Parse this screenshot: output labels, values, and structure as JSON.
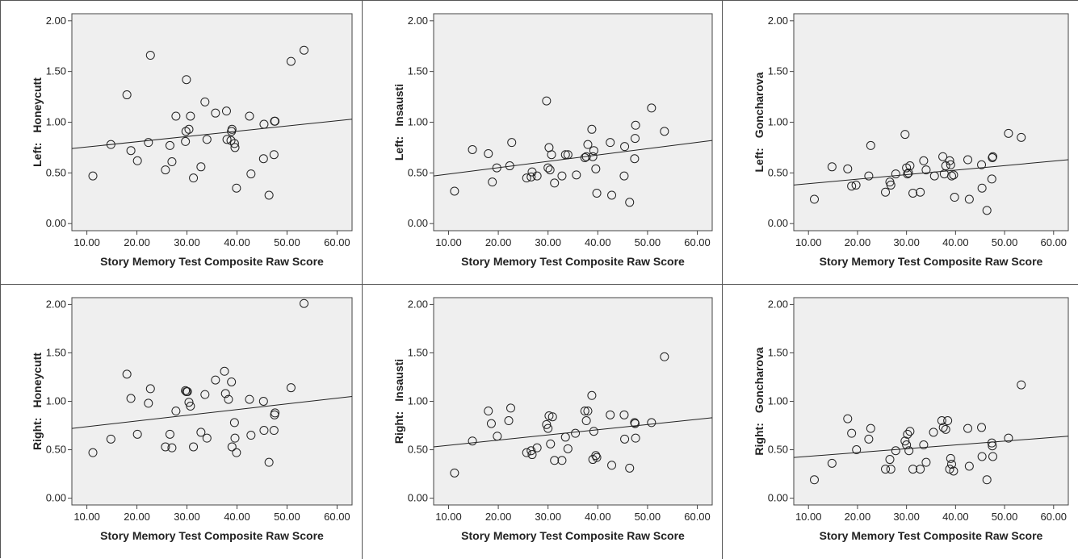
{
  "chart_data": [
    {
      "type": "scatter",
      "panel": "top-left",
      "ylabel_side": "Left:",
      "ylabel_name": "Honeycutt",
      "xlabel": "Story Memory Test Composite Raw Score",
      "xlim": [
        7,
        63
      ],
      "ylim": [
        -0.07,
        2.07
      ],
      "xticks": [
        "10.00",
        "20.00",
        "30.00",
        "40.00",
        "50.00",
        "60.00"
      ],
      "yticks": [
        "0.00",
        "0.50",
        "1.00",
        "1.50",
        "2.00"
      ],
      "fit_line": {
        "x1": 7,
        "y1": 0.74,
        "x2": 63,
        "y2": 1.03
      },
      "points": [
        [
          11.2,
          0.47
        ],
        [
          14.8,
          0.78
        ],
        [
          18.0,
          1.27
        ],
        [
          18.8,
          0.72
        ],
        [
          20.1,
          0.62
        ],
        [
          22.3,
          0.8
        ],
        [
          22.7,
          1.66
        ],
        [
          25.7,
          0.53
        ],
        [
          26.6,
          0.77
        ],
        [
          27.0,
          0.61
        ],
        [
          27.8,
          1.06
        ],
        [
          29.7,
          0.81
        ],
        [
          29.8,
          0.91
        ],
        [
          30.4,
          0.93
        ],
        [
          30.7,
          1.06
        ],
        [
          31.3,
          0.45
        ],
        [
          32.8,
          0.56
        ],
        [
          33.6,
          1.2
        ],
        [
          34.0,
          0.83
        ],
        [
          35.7,
          1.09
        ],
        [
          37.9,
          1.11
        ],
        [
          38.0,
          0.83
        ],
        [
          38.8,
          0.82
        ],
        [
          38.9,
          0.91
        ],
        [
          39.0,
          0.93
        ],
        [
          39.5,
          0.79
        ],
        [
          39.6,
          0.75
        ],
        [
          39.9,
          0.35
        ],
        [
          42.5,
          1.06
        ],
        [
          42.8,
          0.49
        ],
        [
          45.3,
          0.64
        ],
        [
          45.4,
          0.98
        ],
        [
          46.4,
          0.28
        ],
        [
          47.4,
          0.68
        ],
        [
          47.5,
          1.01
        ],
        [
          47.6,
          1.01
        ],
        [
          50.8,
          1.6
        ],
        [
          53.4,
          1.71
        ],
        [
          29.9,
          1.42
        ]
      ]
    },
    {
      "type": "scatter",
      "panel": "top-middle",
      "ylabel_side": "Left:",
      "ylabel_name": "Insausti",
      "xlabel": "Story Memory Test Composite Raw Score",
      "xlim": [
        7,
        63
      ],
      "ylim": [
        -0.07,
        2.07
      ],
      "xticks": [
        "10.00",
        "20.00",
        "30.00",
        "40.00",
        "50.00",
        "60.00"
      ],
      "yticks": [
        "0.00",
        "0.50",
        "1.00",
        "1.50",
        "2.00"
      ],
      "fit_line": {
        "x1": 7,
        "y1": 0.47,
        "x2": 63,
        "y2": 0.82
      },
      "points": [
        [
          11.2,
          0.32
        ],
        [
          14.8,
          0.73
        ],
        [
          18.0,
          0.69
        ],
        [
          18.8,
          0.41
        ],
        [
          19.7,
          0.55
        ],
        [
          22.3,
          0.57
        ],
        [
          22.7,
          0.8
        ],
        [
          25.7,
          0.45
        ],
        [
          26.6,
          0.46
        ],
        [
          26.8,
          0.51
        ],
        [
          27.8,
          0.47
        ],
        [
          29.7,
          1.21
        ],
        [
          30.0,
          0.55
        ],
        [
          30.2,
          0.75
        ],
        [
          30.4,
          0.53
        ],
        [
          30.7,
          0.68
        ],
        [
          31.3,
          0.4
        ],
        [
          32.8,
          0.47
        ],
        [
          33.5,
          0.68
        ],
        [
          34.0,
          0.68
        ],
        [
          35.7,
          0.48
        ],
        [
          37.4,
          0.65
        ],
        [
          37.7,
          0.66
        ],
        [
          38.0,
          0.78
        ],
        [
          38.8,
          0.93
        ],
        [
          39.0,
          0.66
        ],
        [
          39.2,
          0.72
        ],
        [
          39.6,
          0.54
        ],
        [
          39.8,
          0.3
        ],
        [
          42.5,
          0.8
        ],
        [
          42.8,
          0.28
        ],
        [
          45.3,
          0.47
        ],
        [
          45.4,
          0.76
        ],
        [
          46.4,
          0.21
        ],
        [
          47.4,
          0.64
        ],
        [
          47.5,
          0.84
        ],
        [
          47.6,
          0.97
        ],
        [
          50.8,
          1.14
        ],
        [
          53.4,
          0.91
        ]
      ]
    },
    {
      "type": "scatter",
      "panel": "top-right",
      "ylabel_side": "Left:",
      "ylabel_name": "Goncharova",
      "xlabel": "Story Memory Test Composite Raw Score",
      "xlim": [
        7,
        63
      ],
      "ylim": [
        -0.07,
        2.07
      ],
      "xticks": [
        "10.00",
        "20.00",
        "30.00",
        "40.00",
        "50.00",
        "60.00"
      ],
      "yticks": [
        "0.00",
        "0.50",
        "1.00",
        "1.50",
        "2.00"
      ],
      "fit_line": {
        "x1": 7,
        "y1": 0.38,
        "x2": 63,
        "y2": 0.63
      },
      "points": [
        [
          11.2,
          0.24
        ],
        [
          14.8,
          0.56
        ],
        [
          18.0,
          0.54
        ],
        [
          18.8,
          0.37
        ],
        [
          19.7,
          0.38
        ],
        [
          22.3,
          0.47
        ],
        [
          22.7,
          0.77
        ],
        [
          25.7,
          0.31
        ],
        [
          26.6,
          0.41
        ],
        [
          26.8,
          0.38
        ],
        [
          27.8,
          0.49
        ],
        [
          29.7,
          0.88
        ],
        [
          30.0,
          0.55
        ],
        [
          30.2,
          0.49
        ],
        [
          30.4,
          0.5
        ],
        [
          30.7,
          0.57
        ],
        [
          31.3,
          0.3
        ],
        [
          32.8,
          0.31
        ],
        [
          33.5,
          0.62
        ],
        [
          34.0,
          0.53
        ],
        [
          35.7,
          0.47
        ],
        [
          37.4,
          0.66
        ],
        [
          37.7,
          0.49
        ],
        [
          38.0,
          0.57
        ],
        [
          38.8,
          0.62
        ],
        [
          39.0,
          0.58
        ],
        [
          39.2,
          0.47
        ],
        [
          39.6,
          0.48
        ],
        [
          39.8,
          0.26
        ],
        [
          42.5,
          0.63
        ],
        [
          42.8,
          0.24
        ],
        [
          45.3,
          0.58
        ],
        [
          45.4,
          0.35
        ],
        [
          46.4,
          0.13
        ],
        [
          47.4,
          0.44
        ],
        [
          47.5,
          0.65
        ],
        [
          47.6,
          0.66
        ],
        [
          50.8,
          0.89
        ],
        [
          53.4,
          0.85
        ]
      ]
    },
    {
      "type": "scatter",
      "panel": "bottom-left",
      "ylabel_side": "Right:",
      "ylabel_name": "Honeycutt",
      "xlabel": "Story Memory Test Composite Raw Score",
      "xlim": [
        7,
        63
      ],
      "ylim": [
        -0.07,
        2.07
      ],
      "xticks": [
        "10.00",
        "20.00",
        "30.00",
        "40.00",
        "50.00",
        "60.00"
      ],
      "yticks": [
        "0.00",
        "0.50",
        "1.00",
        "1.50",
        "2.00"
      ],
      "fit_line": {
        "x1": 7,
        "y1": 0.72,
        "x2": 63,
        "y2": 1.05
      },
      "points": [
        [
          11.2,
          0.47
        ],
        [
          14.8,
          0.61
        ],
        [
          18.0,
          1.28
        ],
        [
          18.8,
          1.03
        ],
        [
          20.1,
          0.66
        ],
        [
          22.3,
          0.98
        ],
        [
          22.7,
          1.13
        ],
        [
          25.7,
          0.53
        ],
        [
          26.6,
          0.66
        ],
        [
          27.0,
          0.52
        ],
        [
          27.8,
          0.9
        ],
        [
          29.7,
          1.11
        ],
        [
          29.9,
          1.1
        ],
        [
          30.1,
          1.1
        ],
        [
          30.4,
          0.99
        ],
        [
          30.7,
          0.95
        ],
        [
          31.3,
          0.53
        ],
        [
          32.8,
          0.68
        ],
        [
          33.6,
          1.07
        ],
        [
          34.0,
          0.62
        ],
        [
          35.7,
          1.22
        ],
        [
          37.5,
          1.31
        ],
        [
          37.7,
          1.08
        ],
        [
          38.3,
          1.02
        ],
        [
          38.9,
          1.2
        ],
        [
          39.0,
          0.53
        ],
        [
          39.5,
          0.78
        ],
        [
          39.6,
          0.62
        ],
        [
          39.9,
          0.47
        ],
        [
          42.5,
          1.02
        ],
        [
          42.8,
          0.65
        ],
        [
          45.3,
          1.0
        ],
        [
          45.4,
          0.7
        ],
        [
          46.4,
          0.37
        ],
        [
          47.4,
          0.7
        ],
        [
          47.5,
          0.86
        ],
        [
          47.6,
          0.88
        ],
        [
          50.8,
          1.14
        ],
        [
          53.4,
          2.01
        ]
      ]
    },
    {
      "type": "scatter",
      "panel": "bottom-middle",
      "ylabel_side": "Right:",
      "ylabel_name": "Insausti",
      "xlabel": "Story Memory Test Composite Raw Score",
      "xlim": [
        7,
        63
      ],
      "ylim": [
        -0.07,
        2.07
      ],
      "xticks": [
        "10.00",
        "20.00",
        "30.00",
        "40.00",
        "50.00",
        "60.00"
      ],
      "yticks": [
        "0.00",
        "0.50",
        "1.00",
        "1.50",
        "2.00"
      ],
      "fit_line": {
        "x1": 7,
        "y1": 0.53,
        "x2": 63,
        "y2": 0.83
      },
      "points": [
        [
          11.2,
          0.26
        ],
        [
          14.8,
          0.59
        ],
        [
          18.0,
          0.9
        ],
        [
          18.6,
          0.77
        ],
        [
          19.8,
          0.64
        ],
        [
          22.1,
          0.8
        ],
        [
          22.5,
          0.93
        ],
        [
          25.7,
          0.47
        ],
        [
          26.6,
          0.49
        ],
        [
          26.8,
          0.45
        ],
        [
          27.8,
          0.52
        ],
        [
          29.7,
          0.76
        ],
        [
          30.0,
          0.72
        ],
        [
          30.2,
          0.85
        ],
        [
          30.5,
          0.56
        ],
        [
          30.9,
          0.84
        ],
        [
          31.3,
          0.39
        ],
        [
          32.8,
          0.39
        ],
        [
          33.5,
          0.63
        ],
        [
          34.0,
          0.51
        ],
        [
          35.5,
          0.67
        ],
        [
          37.4,
          0.9
        ],
        [
          37.7,
          0.8
        ],
        [
          38.0,
          0.9
        ],
        [
          38.8,
          1.06
        ],
        [
          39.0,
          0.4
        ],
        [
          39.2,
          0.69
        ],
        [
          39.6,
          0.44
        ],
        [
          39.8,
          0.42
        ],
        [
          42.5,
          0.86
        ],
        [
          42.8,
          0.34
        ],
        [
          45.3,
          0.86
        ],
        [
          45.4,
          0.61
        ],
        [
          46.4,
          0.31
        ],
        [
          47.4,
          0.78
        ],
        [
          47.5,
          0.77
        ],
        [
          47.6,
          0.62
        ],
        [
          50.8,
          0.78
        ],
        [
          53.4,
          1.46
        ]
      ]
    },
    {
      "type": "scatter",
      "panel": "bottom-right",
      "ylabel_side": "Right:",
      "ylabel_name": "Goncharova",
      "xlabel": "Story Memory Test Composite Raw Score",
      "xlim": [
        7,
        63
      ],
      "ylim": [
        -0.07,
        2.07
      ],
      "xticks": [
        "10.00",
        "20.00",
        "30.00",
        "40.00",
        "50.00",
        "60.00"
      ],
      "yticks": [
        "0.00",
        "0.50",
        "1.00",
        "1.50",
        "2.00"
      ],
      "fit_line": {
        "x1": 7,
        "y1": 0.42,
        "x2": 63,
        "y2": 0.64
      },
      "points": [
        [
          11.2,
          0.19
        ],
        [
          14.8,
          0.36
        ],
        [
          18.0,
          0.82
        ],
        [
          18.8,
          0.67
        ],
        [
          19.8,
          0.5
        ],
        [
          22.3,
          0.61
        ],
        [
          22.7,
          0.72
        ],
        [
          25.7,
          0.3
        ],
        [
          26.6,
          0.4
        ],
        [
          26.8,
          0.3
        ],
        [
          27.8,
          0.49
        ],
        [
          29.7,
          0.59
        ],
        [
          30.0,
          0.55
        ],
        [
          30.2,
          0.66
        ],
        [
          30.5,
          0.49
        ],
        [
          30.7,
          0.69
        ],
        [
          31.3,
          0.3
        ],
        [
          32.8,
          0.3
        ],
        [
          33.5,
          0.55
        ],
        [
          34.0,
          0.37
        ],
        [
          35.5,
          0.68
        ],
        [
          37.2,
          0.8
        ],
        [
          37.5,
          0.73
        ],
        [
          38.0,
          0.71
        ],
        [
          38.4,
          0.8
        ],
        [
          38.8,
          0.3
        ],
        [
          39.0,
          0.41
        ],
        [
          39.2,
          0.35
        ],
        [
          39.6,
          0.28
        ],
        [
          42.5,
          0.72
        ],
        [
          42.8,
          0.33
        ],
        [
          45.3,
          0.73
        ],
        [
          45.4,
          0.43
        ],
        [
          46.4,
          0.19
        ],
        [
          47.4,
          0.57
        ],
        [
          47.5,
          0.54
        ],
        [
          47.6,
          0.43
        ],
        [
          50.8,
          0.62
        ],
        [
          53.4,
          1.17
        ]
      ]
    }
  ]
}
